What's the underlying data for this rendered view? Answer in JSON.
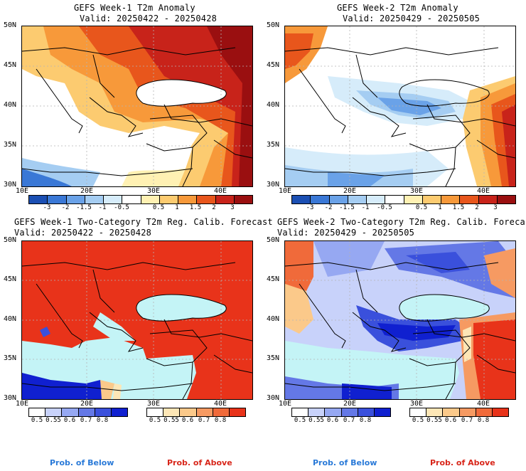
{
  "panels": [
    {
      "title": "GEFS Week-1 T2m Anomaly",
      "valid": "Valid: 20250422 - 20250428",
      "lat_labels": [
        "50N",
        "45N",
        "40N",
        "35N",
        "30N"
      ],
      "lon_labels": [
        "10E",
        "20E",
        "30E",
        "40E"
      ],
      "colorbar_labels": [
        "-3",
        "-2",
        "-1.5",
        "-1",
        "-0.5",
        "0.5",
        "1",
        "1.5",
        "2",
        "3"
      ],
      "colorbar_colors": [
        "#1b4fb3",
        "#3a78d6",
        "#6aa2e8",
        "#a5cdf2",
        "#d6ecfa",
        "#ffffff",
        "#fff1b3",
        "#fccb70",
        "#f7993a",
        "#e8561c",
        "#c8231a",
        "#9a0f10"
      ]
    },
    {
      "title": "GEFS Week-2 T2m Anomaly",
      "valid": "Valid: 20250429 - 20250505",
      "lat_labels": [
        "50N",
        "45N",
        "40N",
        "35N",
        "30N"
      ],
      "lon_labels": [
        "10E",
        "20E",
        "30E",
        "40E"
      ],
      "colorbar_labels": [
        "-3",
        "-2",
        "-1.5",
        "-1",
        "-0.5",
        "0.5",
        "1",
        "1.5",
        "2",
        "3"
      ],
      "colorbar_colors": [
        "#1b4fb3",
        "#3a78d6",
        "#6aa2e8",
        "#a5cdf2",
        "#d6ecfa",
        "#ffffff",
        "#fff1b3",
        "#fccb70",
        "#f7993a",
        "#e8561c",
        "#c8231a",
        "#9a0f10"
      ]
    },
    {
      "title": "GEFS Week-1 Two-Category T2m Reg. Calib. Forecast",
      "valid": "Valid: 20250422 - 20250428",
      "lat_labels": [
        "50N",
        "45N",
        "40N",
        "35N",
        "30N"
      ],
      "lon_labels": [
        "10E",
        "20E",
        "30E",
        "40E"
      ],
      "below_labels": [
        "0.5",
        "0.55",
        "0.6",
        "0.7",
        "0.8"
      ],
      "below_colors": [
        "#ffffff",
        "#c8d2fa",
        "#96a8f2",
        "#6478e6",
        "#3a50dc",
        "#1020d0"
      ],
      "above_labels": [
        "0.5",
        "0.55",
        "0.6",
        "0.7",
        "0.8"
      ],
      "above_colors": [
        "#ffffff",
        "#fde6b6",
        "#fbc98a",
        "#f69a62",
        "#f06a3a",
        "#e8331a"
      ]
    },
    {
      "title": "GEFS Week-2 Two-Category T2m Reg. Calib. Forecast",
      "valid": "Valid: 20250429 - 20250505",
      "lat_labels": [
        "50N",
        "45N",
        "40N",
        "35N",
        "30N"
      ],
      "lon_labels": [
        "10E",
        "20E",
        "30E",
        "40E"
      ],
      "below_labels": [
        "0.5",
        "0.55",
        "0.6",
        "0.7",
        "0.8"
      ],
      "below_colors": [
        "#ffffff",
        "#c8d2fa",
        "#96a8f2",
        "#6478e6",
        "#3a50dc",
        "#1020d0"
      ],
      "above_labels": [
        "0.5",
        "0.55",
        "0.6",
        "0.7",
        "0.8"
      ],
      "above_colors": [
        "#ffffff",
        "#fde6b6",
        "#fbc98a",
        "#f69a62",
        "#f06a3a",
        "#e8331a"
      ]
    }
  ],
  "legend": {
    "below_label": "Prob. of Below",
    "above_label": "Prob. of Above",
    "below_color": "#2a7ad8",
    "above_color": "#d8261a"
  },
  "map_colors": {
    "sea": "#c4f4f6",
    "border": "#000000",
    "grid": "#b4b4b4"
  }
}
